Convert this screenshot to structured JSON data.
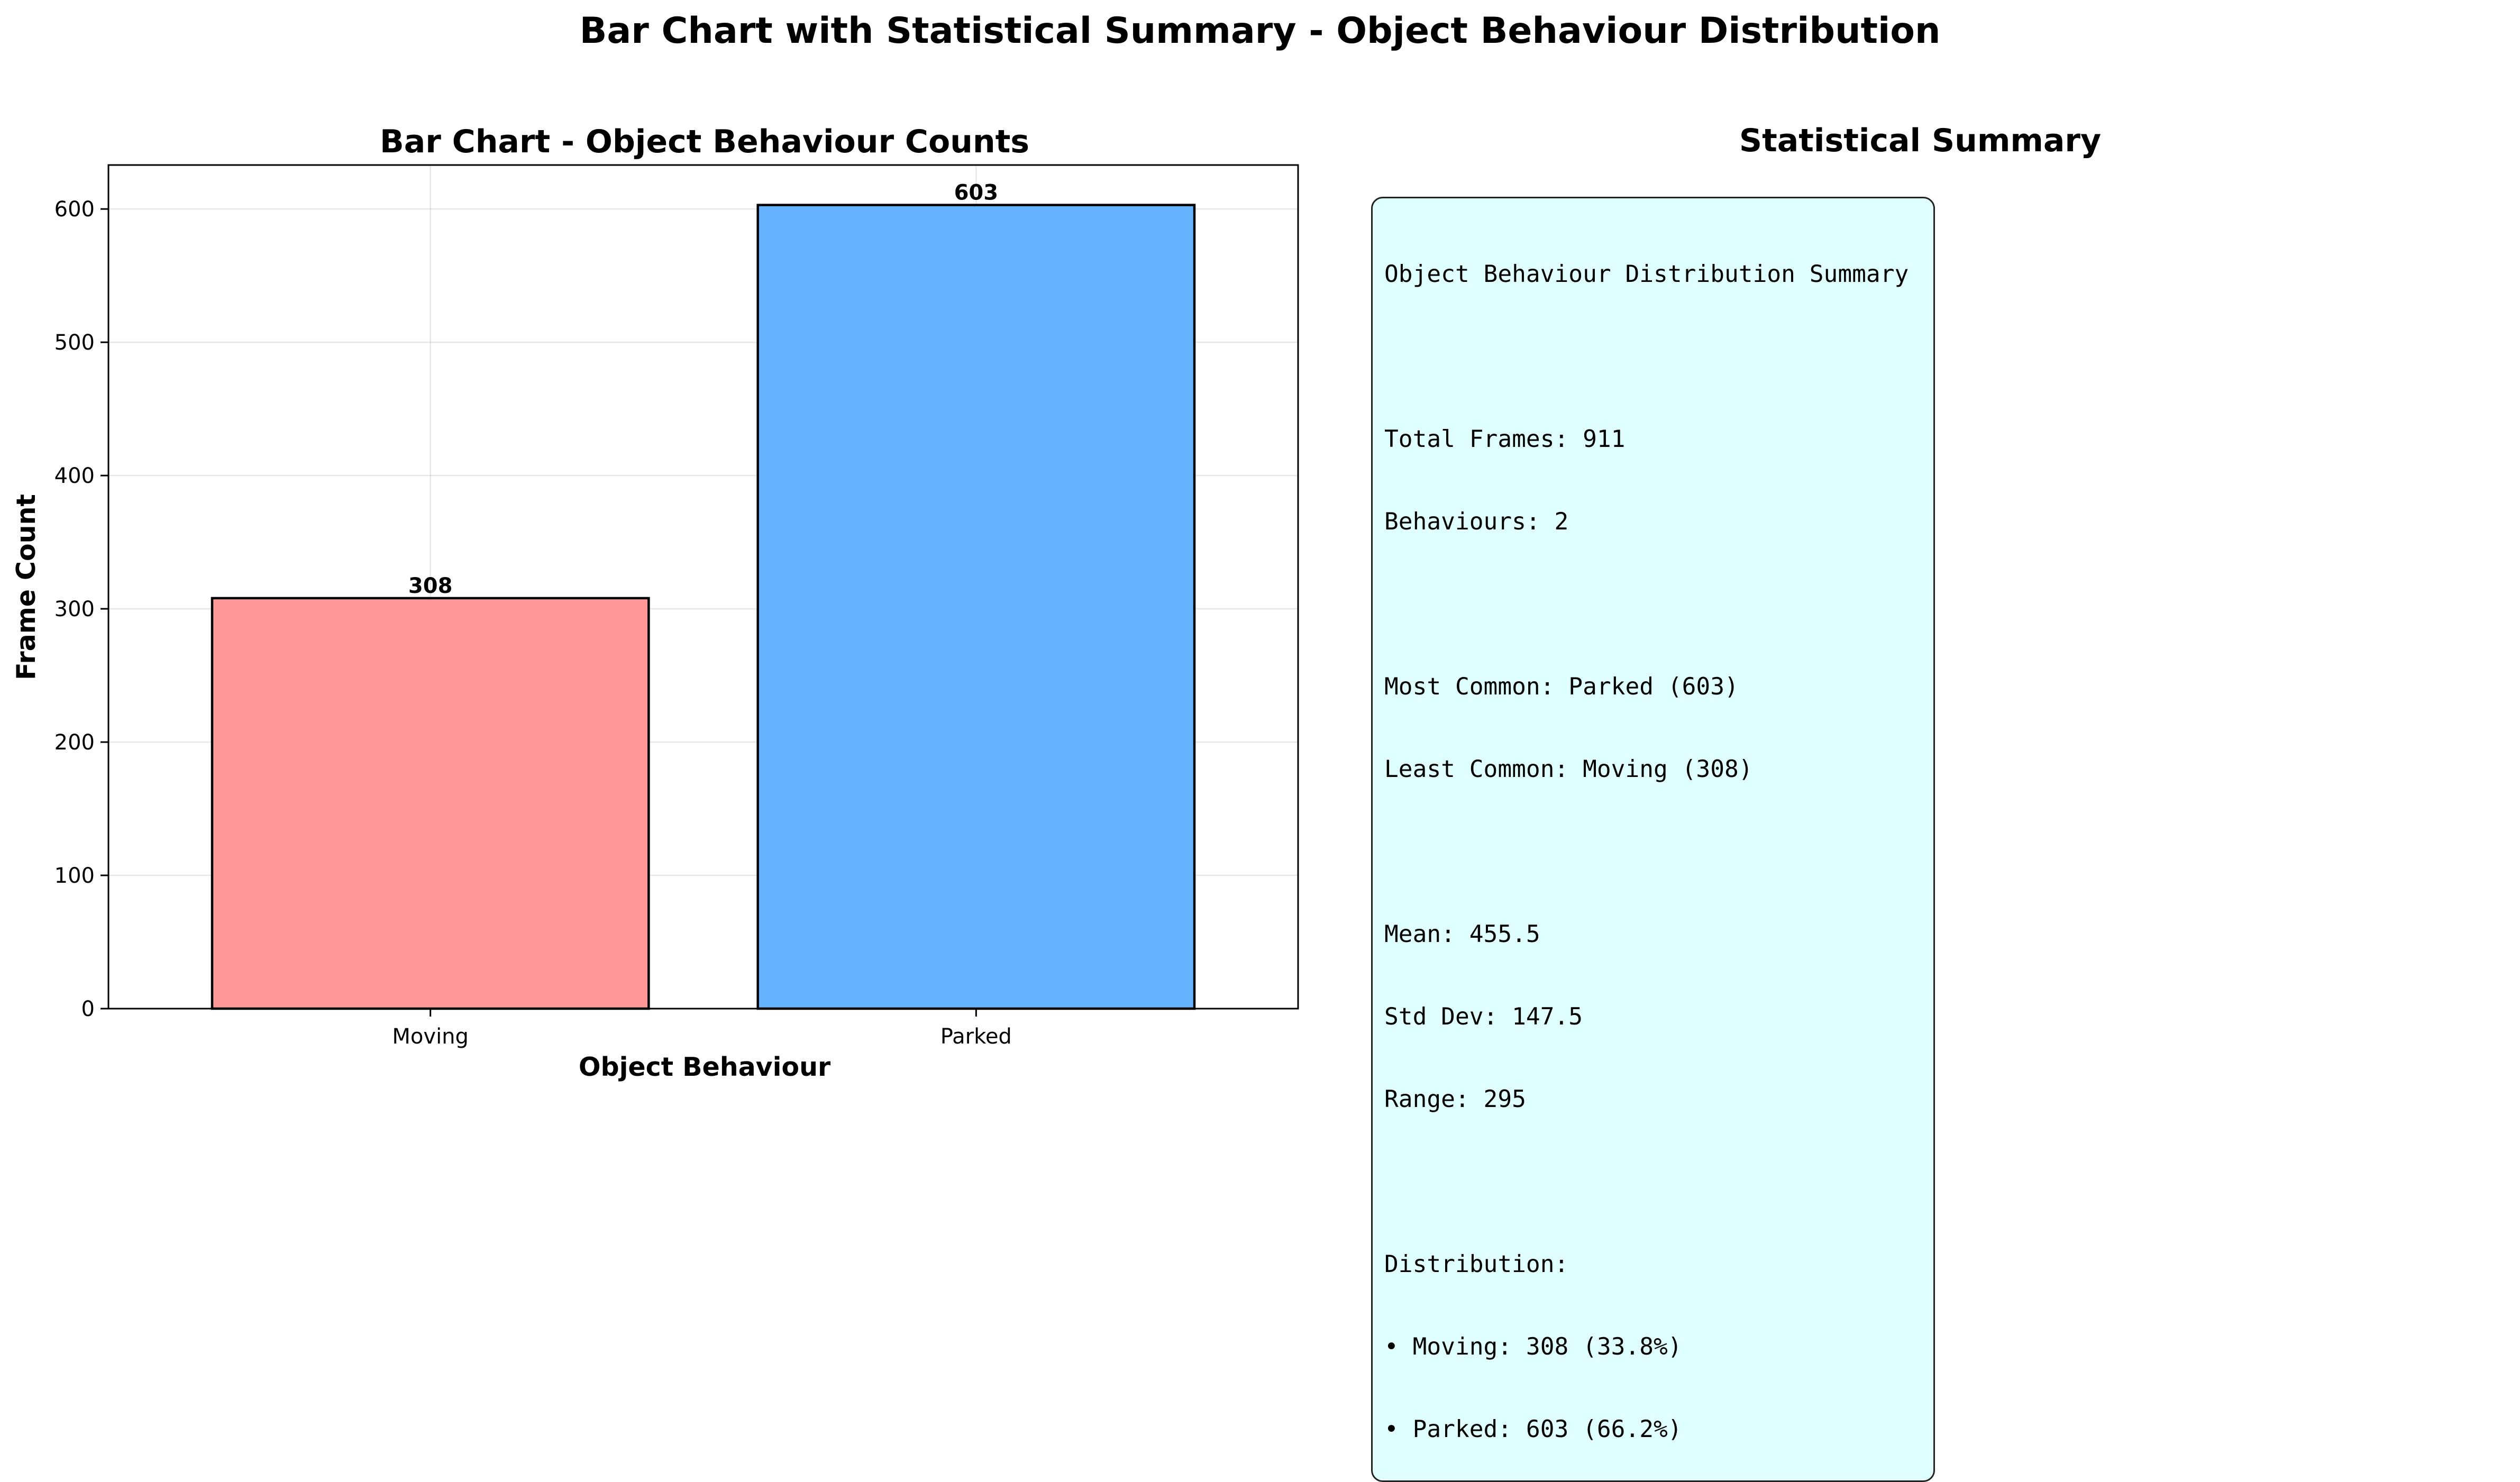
{
  "figure_title": "Bar Chart with Statistical Summary - Object Behaviour Distribution",
  "chart_data": {
    "type": "bar",
    "title": "Bar Chart - Object Behaviour Counts",
    "xlabel": "Object Behaviour",
    "ylabel": "Frame Count",
    "categories": [
      "Moving",
      "Parked"
    ],
    "values": [
      308,
      603
    ],
    "value_labels": [
      "308",
      "603"
    ],
    "colors": [
      "#ff9999",
      "#66b3ff"
    ],
    "ylim": [
      0,
      633
    ],
    "yticks": [
      0,
      100,
      200,
      300,
      400,
      500,
      600
    ],
    "ytick_labels": [
      "0",
      "100",
      "200",
      "300",
      "400",
      "500",
      "600"
    ],
    "grid": true,
    "legend": "none"
  },
  "summary": {
    "title": "Statistical Summary",
    "heading": "Object Behaviour Distribution Summary",
    "total_frames": "Total Frames: 911",
    "behaviours": "Behaviours: 2",
    "most_common": "Most Common: Parked (603)",
    "least_common": "Least Common: Moving (308)",
    "mean": "Mean: 455.5",
    "std_dev": "Std Dev: 147.5",
    "range": "Range: 295",
    "distribution_label": "Distribution:",
    "distribution_items": [
      "• Moving: 308 (33.8%)",
      "• Parked: 603 (66.2%)"
    ],
    "box_color": "#e0ffff"
  }
}
